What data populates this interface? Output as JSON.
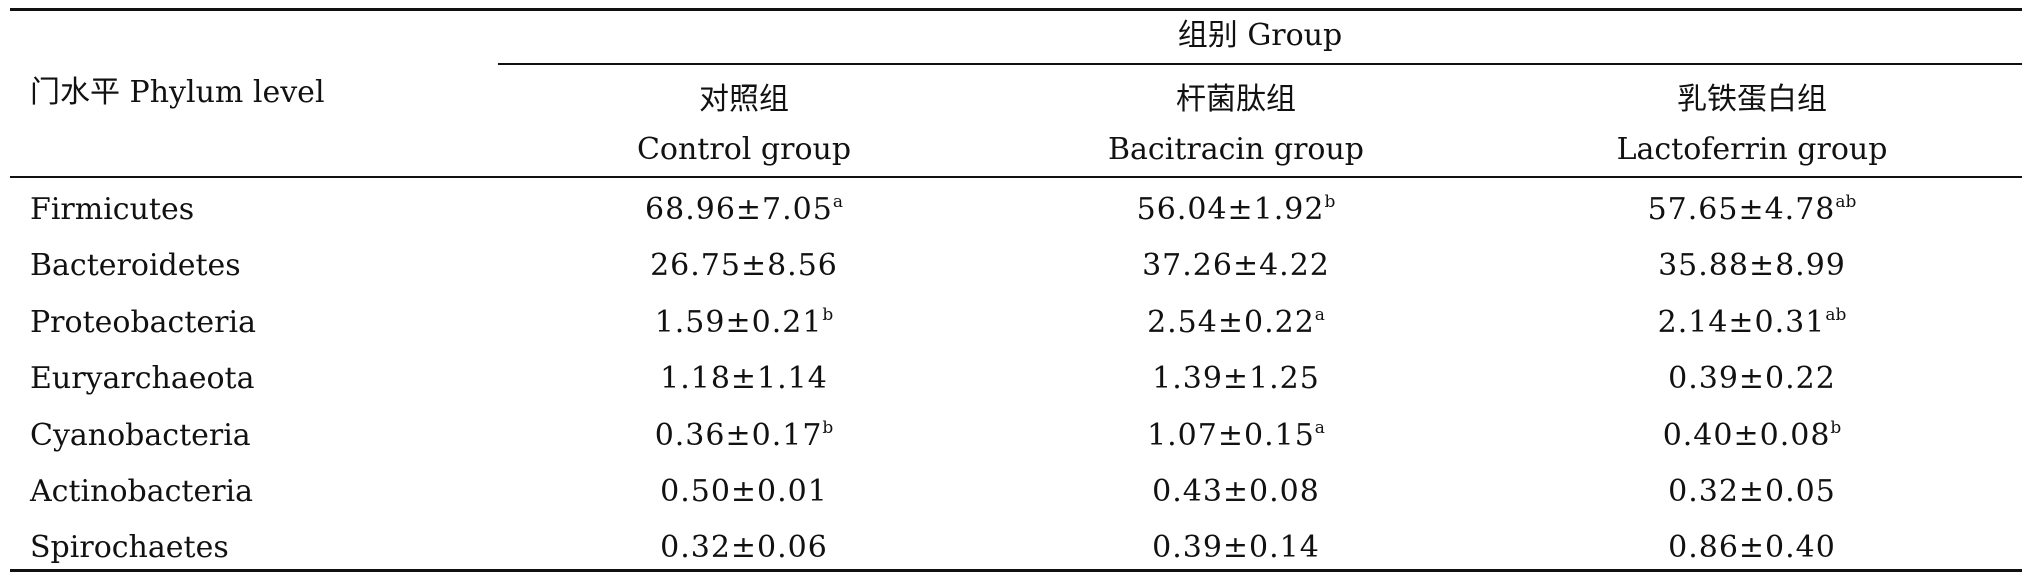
{
  "table": {
    "phylum_header": "门水平 Phylum level",
    "group_header": "组别 Group",
    "columns": [
      {
        "cn": "对照组",
        "en": "Control group"
      },
      {
        "cn": "杆菌肽组",
        "en": "Bacitracin group"
      },
      {
        "cn": "乳铁蛋白组",
        "en": "Lactoferrin group"
      }
    ],
    "rows": [
      {
        "phylum": "Firmicutes",
        "cells": [
          {
            "value": "68.96±7.05",
            "sup": "a"
          },
          {
            "value": "56.04±1.92",
            "sup": "b"
          },
          {
            "value": "57.65±4.78",
            "sup": "ab"
          }
        ]
      },
      {
        "phylum": "Bacteroidetes",
        "cells": [
          {
            "value": "26.75±8.56",
            "sup": ""
          },
          {
            "value": "37.26±4.22",
            "sup": ""
          },
          {
            "value": "35.88±8.99",
            "sup": ""
          }
        ]
      },
      {
        "phylum": "Proteobacteria",
        "cells": [
          {
            "value": "1.59±0.21",
            "sup": "b"
          },
          {
            "value": "2.54±0.22",
            "sup": "a"
          },
          {
            "value": "2.14±0.31",
            "sup": "ab"
          }
        ]
      },
      {
        "phylum": "Euryarchaeota",
        "cells": [
          {
            "value": "1.18±1.14",
            "sup": ""
          },
          {
            "value": "1.39±1.25",
            "sup": ""
          },
          {
            "value": "0.39±0.22",
            "sup": ""
          }
        ]
      },
      {
        "phylum": "Cyanobacteria",
        "cells": [
          {
            "value": "0.36±0.17",
            "sup": "b"
          },
          {
            "value": "1.07±0.15",
            "sup": "a"
          },
          {
            "value": "0.40±0.08",
            "sup": "b"
          }
        ]
      },
      {
        "phylum": "Actinobacteria",
        "cells": [
          {
            "value": "0.50±0.01",
            "sup": ""
          },
          {
            "value": "0.43±0.08",
            "sup": ""
          },
          {
            "value": "0.32±0.05",
            "sup": ""
          }
        ]
      },
      {
        "phylum": "Spirochaetes",
        "cells": [
          {
            "value": "0.32±0.06",
            "sup": ""
          },
          {
            "value": "0.39±0.14",
            "sup": ""
          },
          {
            "value": "0.86±0.40",
            "sup": ""
          }
        ]
      }
    ]
  }
}
